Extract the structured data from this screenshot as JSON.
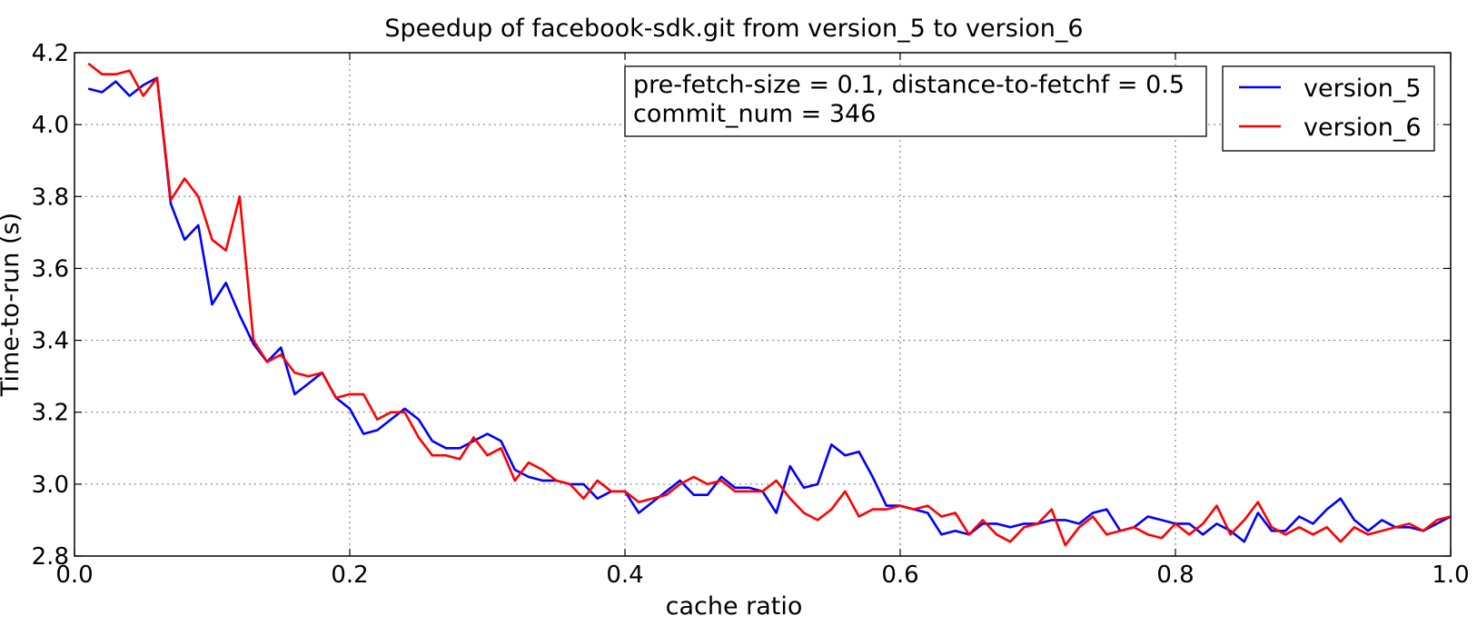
{
  "chart_data": {
    "type": "line",
    "title": "Speedup of facebook-sdk.git from version_5 to version_6",
    "xlabel": "cache ratio",
    "ylabel": "Time-to-run (s)",
    "xlim": [
      0.0,
      1.0
    ],
    "ylim": [
      2.8,
      4.2
    ],
    "xticks": [
      "0.0",
      "0.2",
      "0.4",
      "0.6",
      "0.8",
      "1.0"
    ],
    "yticks": [
      "2.8",
      "3.0",
      "3.2",
      "3.4",
      "3.6",
      "3.8",
      "4.0",
      "4.2"
    ],
    "grid": true,
    "legend_position": "top-right",
    "annotation": {
      "line1": "pre-fetch-size = 0.1, distance-to-fetchf = 0.5",
      "line2": "commit_num = 346"
    },
    "series": [
      {
        "name": "version_5",
        "color": "#0000ff",
        "x_start": 0.01,
        "x_step": 0.01,
        "values": [
          4.1,
          4.09,
          4.12,
          4.08,
          4.11,
          4.13,
          3.78,
          3.68,
          3.72,
          3.5,
          3.56,
          3.47,
          3.39,
          3.34,
          3.38,
          3.25,
          3.28,
          3.31,
          3.24,
          3.21,
          3.14,
          3.15,
          3.18,
          3.21,
          3.18,
          3.12,
          3.1,
          3.1,
          3.12,
          3.14,
          3.12,
          3.04,
          3.02,
          3.01,
          3.01,
          3.0,
          3.0,
          2.96,
          2.98,
          2.98,
          2.92,
          2.95,
          2.98,
          3.01,
          2.97,
          2.97,
          3.02,
          2.99,
          2.99,
          2.98,
          2.92,
          3.05,
          2.99,
          3.0,
          3.11,
          3.08,
          3.09,
          3.02,
          2.94,
          2.94,
          2.93,
          2.92,
          2.86,
          2.87,
          2.86,
          2.89,
          2.89,
          2.88,
          2.89,
          2.89,
          2.9,
          2.9,
          2.89,
          2.92,
          2.93,
          2.87,
          2.88,
          2.91,
          2.9,
          2.89,
          2.89,
          2.86,
          2.89,
          2.87,
          2.84,
          2.92,
          2.87,
          2.87,
          2.91,
          2.89,
          2.93,
          2.96,
          2.9,
          2.87,
          2.9,
          2.88,
          2.88,
          2.87,
          2.89,
          2.91
        ]
      },
      {
        "name": "version_6",
        "color": "#ff0000",
        "x_start": 0.01,
        "x_step": 0.01,
        "values": [
          4.17,
          4.14,
          4.14,
          4.15,
          4.08,
          4.13,
          3.79,
          3.85,
          3.8,
          3.68,
          3.65,
          3.8,
          3.4,
          3.34,
          3.36,
          3.31,
          3.3,
          3.31,
          3.24,
          3.25,
          3.25,
          3.18,
          3.2,
          3.2,
          3.13,
          3.08,
          3.08,
          3.07,
          3.13,
          3.08,
          3.1,
          3.01,
          3.06,
          3.04,
          3.01,
          3.0,
          2.96,
          3.01,
          2.98,
          2.98,
          2.95,
          2.96,
          2.97,
          3.0,
          3.02,
          3.0,
          3.01,
          2.98,
          2.98,
          2.98,
          3.01,
          2.96,
          2.92,
          2.9,
          2.93,
          2.98,
          2.91,
          2.93,
          2.93,
          2.94,
          2.93,
          2.94,
          2.91,
          2.92,
          2.86,
          2.9,
          2.86,
          2.84,
          2.88,
          2.89,
          2.93,
          2.83,
          2.88,
          2.91,
          2.86,
          2.87,
          2.88,
          2.86,
          2.85,
          2.89,
          2.86,
          2.89,
          2.94,
          2.86,
          2.9,
          2.95,
          2.88,
          2.86,
          2.88,
          2.86,
          2.88,
          2.84,
          2.88,
          2.86,
          2.87,
          2.88,
          2.89,
          2.87,
          2.9,
          2.91
        ]
      }
    ]
  }
}
